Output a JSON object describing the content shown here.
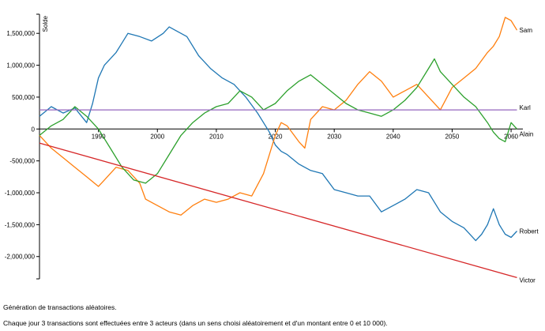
{
  "caption": {
    "line1": "Génération de transactions aléatoires.",
    "line2": "Chaque jour 3 transactions sont effectuées entre 3 acteurs (dans un sens choisi aléatoirement et d'un montant entre 0 et 10 000)."
  },
  "chart_data": {
    "type": "line",
    "title": "",
    "xlabel": "",
    "ylabel": "Solde",
    "xlim": [
      1980,
      2062
    ],
    "ylim": [
      -2350000,
      1800000
    ],
    "x_ticks": [
      1990,
      2000,
      2010,
      2020,
      2030,
      2040,
      2050,
      2060
    ],
    "y_ticks": [
      {
        "value": 1500000,
        "label": "1,500,000"
      },
      {
        "value": 1000000,
        "label": "1,000,000"
      },
      {
        "value": 500000,
        "label": "500,000"
      },
      {
        "value": 0,
        "label": "0"
      },
      {
        "value": -500000,
        "label": "-500,000"
      },
      {
        "value": -1000000,
        "label": "-1,000,000"
      },
      {
        "value": -1500000,
        "label": "-1,500,000"
      },
      {
        "value": -2000000,
        "label": "-2,000,000"
      }
    ],
    "grid": false,
    "legend": "end-of-line labels",
    "series": [
      {
        "name": "Robert",
        "color": "#1f77b4",
        "x": [
          1980,
          1982,
          1984,
          1986,
          1988,
          1989,
          1990,
          1991,
          1993,
          1994,
          1995,
          1997,
          1999,
          2001,
          2002,
          2003,
          2005,
          2007,
          2009,
          2011,
          2013,
          2015,
          2017,
          2018,
          2019,
          2020,
          2021,
          2022,
          2024,
          2026,
          2028,
          2030,
          2032,
          2034,
          2036,
          2038,
          2040,
          2042,
          2044,
          2046,
          2048,
          2050,
          2052,
          2054,
          2055,
          2056,
          2057,
          2058,
          2059,
          2060,
          2061
        ],
        "y": [
          200000,
          350000,
          250000,
          330000,
          100000,
          400000,
          800000,
          1000000,
          1200000,
          1350000,
          1500000,
          1450000,
          1380000,
          1500000,
          1600000,
          1550000,
          1450000,
          1150000,
          950000,
          800000,
          700000,
          500000,
          250000,
          100000,
          -50000,
          -250000,
          -350000,
          -400000,
          -550000,
          -650000,
          -700000,
          -950000,
          -1000000,
          -1050000,
          -1050000,
          -1300000,
          -1200000,
          -1100000,
          -950000,
          -1000000,
          -1300000,
          -1450000,
          -1550000,
          -1750000,
          -1650000,
          -1500000,
          -1250000,
          -1500000,
          -1650000,
          -1700000,
          -1600000
        ]
      },
      {
        "name": "Sam",
        "color": "#ff7f0e",
        "x": [
          1980,
          1982,
          1984,
          1986,
          1988,
          1990,
          1991,
          1993,
          1995,
          1997,
          1998,
          2000,
          2002,
          2004,
          2006,
          2008,
          2010,
          2012,
          2014,
          2016,
          2018,
          2019,
          2020,
          2021,
          2022,
          2024,
          2025,
          2026,
          2028,
          2030,
          2032,
          2034,
          2036,
          2038,
          2040,
          2042,
          2044,
          2046,
          2048,
          2050,
          2052,
          2054,
          2056,
          2057,
          2058,
          2059,
          2060,
          2061
        ],
        "y": [
          -100000,
          -300000,
          -450000,
          -600000,
          -750000,
          -900000,
          -800000,
          -600000,
          -650000,
          -850000,
          -1100000,
          -1200000,
          -1300000,
          -1350000,
          -1200000,
          -1100000,
          -1150000,
          -1100000,
          -1000000,
          -1050000,
          -700000,
          -400000,
          -100000,
          100000,
          50000,
          -200000,
          -300000,
          150000,
          350000,
          300000,
          450000,
          700000,
          900000,
          750000,
          500000,
          600000,
          700000,
          500000,
          300000,
          650000,
          800000,
          950000,
          1200000,
          1300000,
          1450000,
          1750000,
          1700000,
          1550000
        ]
      },
      {
        "name": "Alain",
        "color": "#2ca02c",
        "x": [
          1980,
          1982,
          1984,
          1986,
          1988,
          1990,
          1992,
          1994,
          1996,
          1998,
          2000,
          2002,
          2004,
          2006,
          2008,
          2010,
          2012,
          2014,
          2016,
          2018,
          2020,
          2022,
          2024,
          2026,
          2028,
          2030,
          2032,
          2034,
          2036,
          2038,
          2040,
          2042,
          2044,
          2046,
          2047,
          2048,
          2050,
          2052,
          2054,
          2056,
          2057,
          2058,
          2059,
          2060,
          2061
        ],
        "y": [
          -100000,
          50000,
          150000,
          350000,
          200000,
          0,
          -300000,
          -600000,
          -800000,
          -850000,
          -700000,
          -400000,
          -100000,
          100000,
          250000,
          350000,
          400000,
          600000,
          500000,
          300000,
          400000,
          600000,
          750000,
          850000,
          700000,
          550000,
          400000,
          300000,
          250000,
          200000,
          300000,
          450000,
          650000,
          950000,
          1100000,
          900000,
          700000,
          500000,
          350000,
          100000,
          -50000,
          -150000,
          -200000,
          100000,
          0
        ]
      },
      {
        "name": "Karl",
        "color": "#9467bd",
        "x": [
          1980,
          2061
        ],
        "y": [
          300000,
          300000
        ]
      },
      {
        "name": "Victor",
        "color": "#d62728",
        "x": [
          1980,
          2061
        ],
        "y": [
          -220000,
          -2330000
        ]
      }
    ]
  }
}
